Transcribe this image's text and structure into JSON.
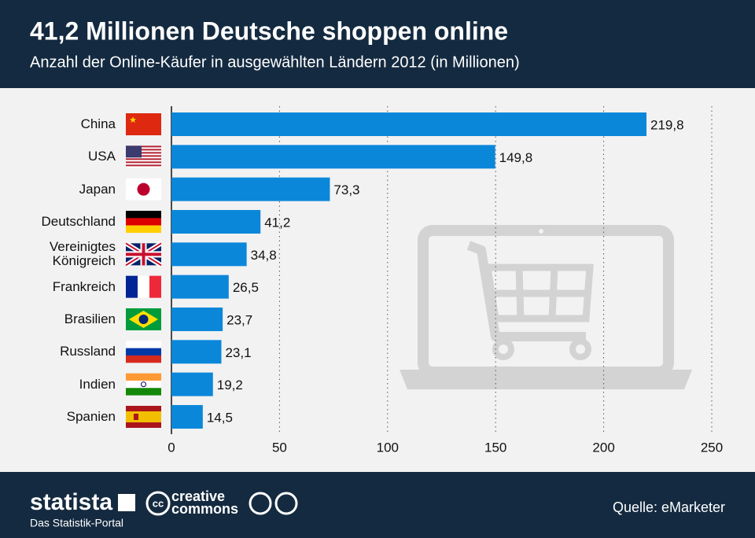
{
  "chart_data": {
    "type": "bar",
    "orientation": "horizontal",
    "title": "41,2 Millionen Deutsche shoppen online",
    "subtitle": "Anzahl der Online-Käufer in ausgewählten Ländern 2012 (in Millionen)",
    "categories": [
      "China",
      "USA",
      "Japan",
      "Deutschland",
      "Vereinigtes Königreich",
      "Frankreich",
      "Brasilien",
      "Russland",
      "Indien",
      "Spanien"
    ],
    "values": [
      219.8,
      149.8,
      73.3,
      41.2,
      34.8,
      26.5,
      23.7,
      23.1,
      19.2,
      14.5
    ],
    "value_labels": [
      "219,8",
      "149,8",
      "73,3",
      "41,2",
      "34,8",
      "26,5",
      "23,7",
      "23,1",
      "19,2",
      "14,5"
    ],
    "color": "#0b87da",
    "xlim": [
      0,
      250
    ],
    "xticks": [
      0,
      50,
      100,
      150,
      200,
      250
    ],
    "grid": true
  },
  "footer": {
    "brand": "statista",
    "tagline": "Das Statistik-Portal",
    "license_top": "creative",
    "license_bottom": "commons",
    "source": "Quelle: eMarketer"
  }
}
